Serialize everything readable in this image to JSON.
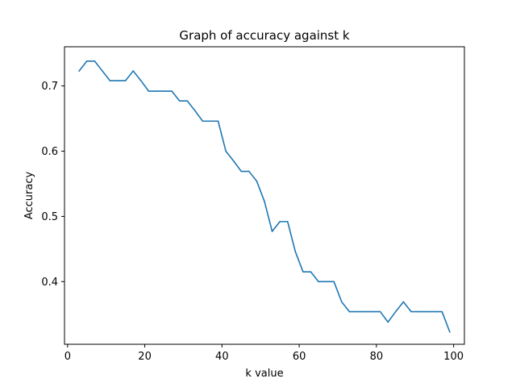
{
  "chart_data": {
    "type": "line",
    "title": "Graph of accuracy against k",
    "xlabel": "k value",
    "ylabel": "Accuracy",
    "xlim": [
      -0.8,
      102.8
    ],
    "ylim": [
      0.304,
      0.76
    ],
    "xticks": [
      {
        "value": 0,
        "label": "0"
      },
      {
        "value": 20,
        "label": "20"
      },
      {
        "value": 40,
        "label": "40"
      },
      {
        "value": 60,
        "label": "60"
      },
      {
        "value": 80,
        "label": "80"
      },
      {
        "value": 100,
        "label": "100"
      }
    ],
    "yticks": [
      {
        "value": 0.4,
        "label": "0.4"
      },
      {
        "value": 0.5,
        "label": "0.5"
      },
      {
        "value": 0.6,
        "label": "0.6"
      },
      {
        "value": 0.7,
        "label": "0.7"
      }
    ],
    "grid": false,
    "color": "#1f77b4",
    "x": [
      3,
      5,
      7,
      9,
      11,
      13,
      15,
      17,
      19,
      21,
      23,
      25,
      27,
      29,
      31,
      33,
      35,
      37,
      39,
      41,
      43,
      45,
      47,
      49,
      51,
      53,
      55,
      57,
      59,
      61,
      63,
      65,
      67,
      69,
      71,
      73,
      75,
      77,
      79,
      81,
      83,
      85,
      87,
      89,
      91,
      93,
      95,
      97,
      99
    ],
    "y": [
      0.723,
      0.738,
      0.738,
      0.723,
      0.708,
      0.708,
      0.708,
      0.723,
      0.708,
      0.692,
      0.692,
      0.692,
      0.692,
      0.677,
      0.677,
      0.662,
      0.646,
      0.646,
      0.646,
      0.6,
      0.585,
      0.569,
      0.569,
      0.554,
      0.523,
      0.477,
      0.492,
      0.492,
      0.446,
      0.415,
      0.415,
      0.4,
      0.4,
      0.4,
      0.369,
      0.354,
      0.354,
      0.354,
      0.354,
      0.354,
      0.338,
      0.354,
      0.369,
      0.354,
      0.354,
      0.354,
      0.354,
      0.354,
      0.323
    ]
  }
}
